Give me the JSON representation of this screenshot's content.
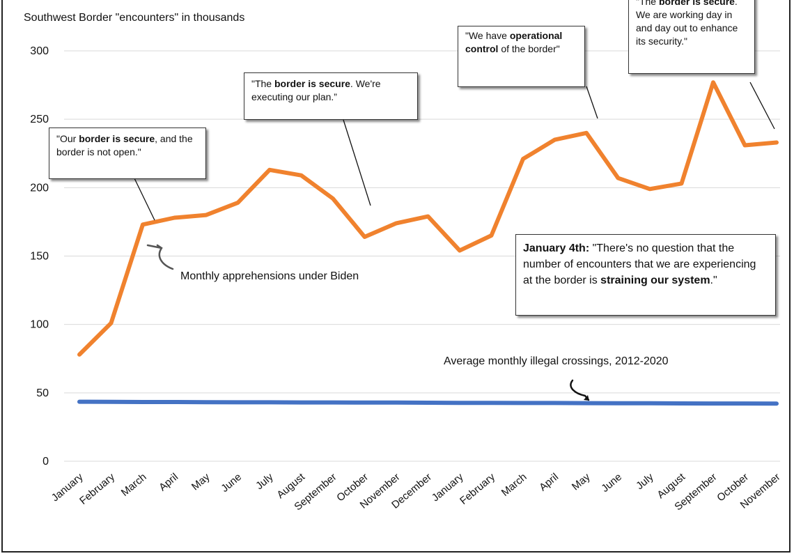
{
  "chart_data": {
    "type": "line",
    "subtitle": "Southwest Border \"encounters\" in thousands",
    "categories": [
      "January",
      "February",
      "March",
      "April",
      "May",
      "June",
      "July",
      "August",
      "September",
      "October",
      "November",
      "December",
      "January",
      "February",
      "March",
      "April",
      "May",
      "June",
      "July",
      "August",
      "September",
      "October",
      "November"
    ],
    "series": [
      {
        "name": "Monthly apprehensions under Biden",
        "color": "#F0822E",
        "values": [
          78,
          101,
          173,
          178,
          180,
          189,
          213,
          209,
          192,
          164,
          174,
          179,
          154,
          165,
          221,
          235,
          240,
          207,
          199,
          203,
          277,
          231,
          233
        ]
      },
      {
        "name": "Average monthly illegal crossings, 2012-2020",
        "color": "#4472C4",
        "values": [
          43.5,
          43.4,
          43.3,
          43.3,
          43.2,
          43.1,
          43.1,
          43.0,
          43.0,
          42.9,
          42.9,
          42.8,
          42.7,
          42.7,
          42.6,
          42.6,
          42.5,
          42.4,
          42.4,
          42.3,
          42.2,
          42.2,
          42.1
        ]
      }
    ],
    "ylim": [
      0,
      300
    ],
    "yticks": [
      "0",
      "50",
      "100",
      "150",
      "200",
      "250",
      "300"
    ],
    "grid": true,
    "legend": "none"
  },
  "annotations": {
    "c1": {
      "pre": "\"Our ",
      "bold1": "border is secure",
      "post": ", and the border is not open.\""
    },
    "c2": {
      "pre": "\"The ",
      "bold1": "border is secure",
      "post": ". We're executing our plan.”"
    },
    "c3": {
      "pre": "\"We have ",
      "bold1": "operational control",
      "post": " of the border\""
    },
    "c4": {
      "pre": "\"The ",
      "bold1": "border is secure",
      "post": ". We are working day in and day out to enhance its security.\""
    },
    "c5": {
      "bold0": "January 4th:",
      "pre": " \"There's no question that the number of encounters that we are experiencing at the border is ",
      "bold1": "straining our system",
      "post": ".\""
    }
  },
  "labels": {
    "biden": "Monthly apprehensions under Biden",
    "average": "Average monthly illegal crossings, 2012-2020"
  }
}
